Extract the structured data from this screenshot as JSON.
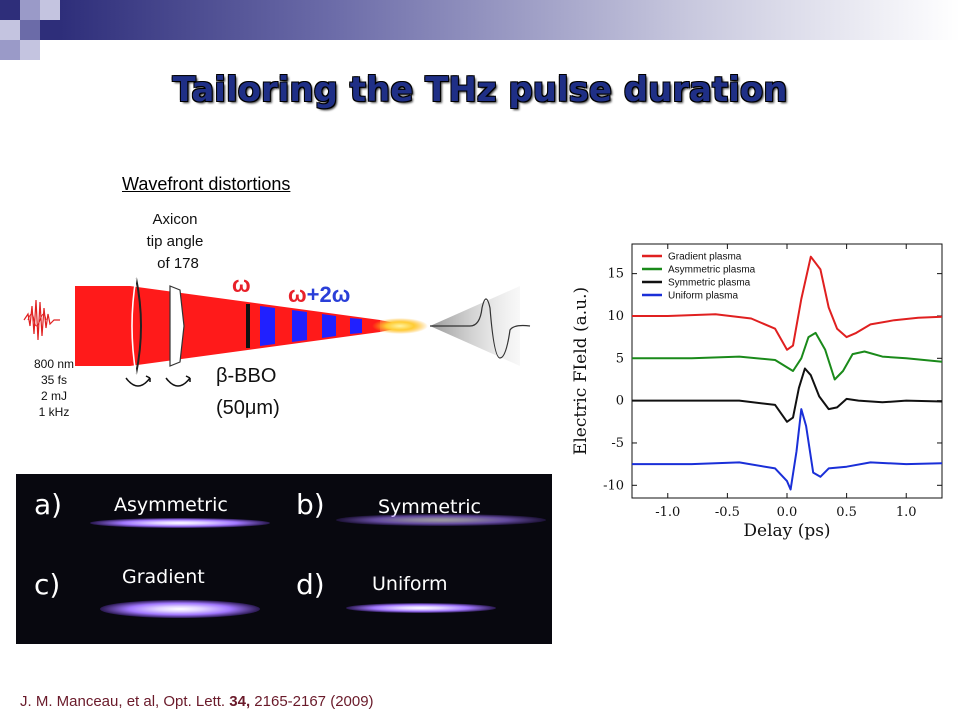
{
  "slide": {
    "title": "Tailoring the THz pulse duration",
    "citation": {
      "prefix": "J. M. Manceau, et al, Opt. Lett. ",
      "volume": "34,",
      "suffix": " 2165-2167 (2009)"
    }
  },
  "setup": {
    "heading": "Wavefront distortions",
    "axicon_lines": [
      "Axicon",
      "tip angle",
      "of 178"
    ],
    "laser_params": [
      "800 nm",
      "35 fs",
      "2 mJ",
      "1 kHz"
    ],
    "omega_label": "ω",
    "omega2_label_a": "ω",
    "omega2_label_b": "+2",
    "omega2_label_c": "ω",
    "crystal_label": "β-BBO",
    "crystal_thickness": "(50μm)",
    "colors": {
      "beam": "#ff1a1a",
      "blue_segment": "#2020ff",
      "omega_red": "#e8212a",
      "omega_blue": "#2a3fd8"
    }
  },
  "plasma_images": [
    {
      "letter": "a)",
      "label": "Asymmetric"
    },
    {
      "letter": "b)",
      "label": "Symmetric"
    },
    {
      "letter": "c)",
      "label": "Gradient"
    },
    {
      "letter": "d)",
      "label": "Uniform"
    }
  ],
  "chart_data": {
    "type": "line",
    "xlabel": "Delay (ps)",
    "ylabel": "Electric FIeld (a.u.)",
    "xlim": [
      -1.3,
      1.3
    ],
    "ylim": [
      -11.5,
      18.5
    ],
    "xticks": [
      -1.0,
      -0.5,
      0.0,
      0.5,
      1.0
    ],
    "xtick_labels": [
      "-1.0",
      "-0.5",
      "0.0",
      "0.5",
      "1.0"
    ],
    "yticks": [
      15,
      10,
      5,
      0,
      -5,
      -10
    ],
    "ytick_labels": [
      "15",
      "10",
      "5",
      "0",
      "-5",
      "-10"
    ],
    "legend_position": "top-left",
    "series": [
      {
        "name": "Gradient plasma",
        "color": "#e02020",
        "x": [
          -1.3,
          -1.0,
          -0.6,
          -0.3,
          -0.1,
          0.0,
          0.05,
          0.12,
          0.2,
          0.28,
          0.35,
          0.42,
          0.5,
          0.58,
          0.7,
          0.9,
          1.1,
          1.3
        ],
        "y": [
          10.0,
          10.0,
          10.2,
          9.7,
          8.5,
          6.0,
          6.5,
          12.0,
          17.0,
          15.5,
          11.0,
          8.5,
          7.5,
          8.0,
          9.0,
          9.5,
          9.8,
          9.9
        ]
      },
      {
        "name": "Asymmetric plasma",
        "color": "#1a8a1a",
        "x": [
          -1.3,
          -0.8,
          -0.4,
          -0.1,
          0.05,
          0.12,
          0.18,
          0.24,
          0.32,
          0.4,
          0.47,
          0.55,
          0.65,
          0.8,
          1.0,
          1.3
        ],
        "y": [
          5.0,
          5.0,
          5.2,
          4.8,
          3.5,
          5.0,
          7.5,
          8.0,
          6.0,
          2.5,
          3.5,
          5.5,
          5.8,
          5.2,
          5.0,
          4.6
        ]
      },
      {
        "name": "Symmetric plasma",
        "color": "#111111",
        "x": [
          -1.3,
          -0.8,
          -0.4,
          -0.1,
          0.0,
          0.05,
          0.1,
          0.15,
          0.2,
          0.27,
          0.35,
          0.42,
          0.5,
          0.6,
          0.8,
          1.0,
          1.3
        ],
        "y": [
          0.0,
          0.0,
          0.0,
          -0.5,
          -2.5,
          -2.0,
          1.5,
          3.8,
          3.0,
          0.5,
          -1.0,
          -0.8,
          0.2,
          0.0,
          -0.2,
          0.0,
          -0.1
        ]
      },
      {
        "name": "Uniform plasma",
        "color": "#1a2fd8",
        "x": [
          -1.3,
          -0.8,
          -0.4,
          -0.1,
          0.0,
          0.03,
          0.08,
          0.12,
          0.16,
          0.22,
          0.28,
          0.35,
          0.5,
          0.7,
          1.0,
          1.3
        ],
        "y": [
          -7.5,
          -7.5,
          -7.3,
          -8.0,
          -9.5,
          -10.5,
          -6.0,
          -1.0,
          -3.0,
          -8.5,
          -9.0,
          -8.0,
          -7.8,
          -7.3,
          -7.5,
          -7.4
        ]
      }
    ]
  }
}
